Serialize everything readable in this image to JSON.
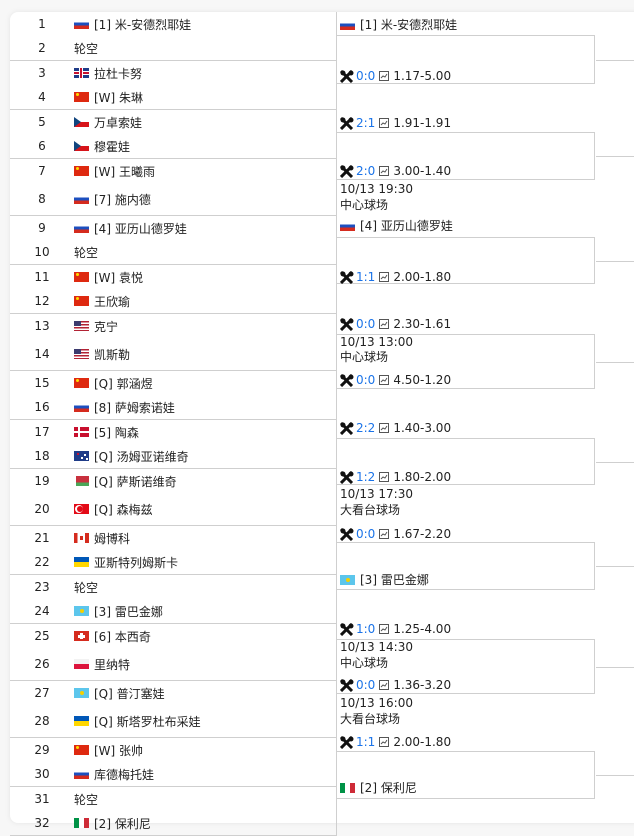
{
  "colors": {
    "score": "#1a73e8",
    "border": "#cfcfcf"
  },
  "players": [
    {
      "seed": "1",
      "flag": "ru",
      "name": "[1] 米-安德烈耶娃"
    },
    {
      "seed": "2",
      "flag": "",
      "name": "轮空"
    },
    {
      "seed": "3",
      "flag": "gb",
      "name": "拉杜卡努"
    },
    {
      "seed": "4",
      "flag": "cn",
      "name": "[W] 朱琳"
    },
    {
      "seed": "5",
      "flag": "cz",
      "name": "万卓索娃"
    },
    {
      "seed": "6",
      "flag": "cz",
      "name": "穆霍娃"
    },
    {
      "seed": "7",
      "flag": "cn",
      "name": "[W] 王曦雨"
    },
    {
      "seed": "8",
      "flag": "ru",
      "name": "[7] 施内德"
    },
    {
      "seed": "9",
      "flag": "ru",
      "name": "[4] 亚历山德罗娃"
    },
    {
      "seed": "10",
      "flag": "",
      "name": "轮空"
    },
    {
      "seed": "11",
      "flag": "cn",
      "name": "[W] 袁悦"
    },
    {
      "seed": "12",
      "flag": "cn",
      "name": "王欣瑜"
    },
    {
      "seed": "13",
      "flag": "us",
      "name": "克宁"
    },
    {
      "seed": "14",
      "flag": "us",
      "name": "凯斯勒"
    },
    {
      "seed": "15",
      "flag": "cn",
      "name": "[Q] 郭涵煜"
    },
    {
      "seed": "16",
      "flag": "ru",
      "name": "[8] 萨姆索诺娃"
    },
    {
      "seed": "17",
      "flag": "dk",
      "name": "[5] 陶森"
    },
    {
      "seed": "18",
      "flag": "au",
      "name": "[Q] 汤姆亚诺维奇"
    },
    {
      "seed": "19",
      "flag": "by",
      "name": "[Q] 萨斯诺维奇"
    },
    {
      "seed": "20",
      "flag": "tr",
      "name": "[Q] 森梅兹"
    },
    {
      "seed": "21",
      "flag": "ca",
      "name": "姆博科"
    },
    {
      "seed": "22",
      "flag": "ua",
      "name": "亚斯特列姆斯卡"
    },
    {
      "seed": "23",
      "flag": "",
      "name": "轮空"
    },
    {
      "seed": "24",
      "flag": "kz",
      "name": "[3] 雷巴金娜"
    },
    {
      "seed": "25",
      "flag": "ch",
      "name": "[6] 本西奇"
    },
    {
      "seed": "26",
      "flag": "pl",
      "name": "里纳特"
    },
    {
      "seed": "27",
      "flag": "kz",
      "name": "[Q] 普汀塞娃"
    },
    {
      "seed": "28",
      "flag": "ua",
      "name": "[Q] 斯塔罗杜布采娃"
    },
    {
      "seed": "29",
      "flag": "cn",
      "name": "[W] 张帅"
    },
    {
      "seed": "30",
      "flag": "ru",
      "name": "库德梅托娃"
    },
    {
      "seed": "31",
      "flag": "",
      "name": "轮空"
    },
    {
      "seed": "32",
      "flag": "it-flag",
      "name": "[2] 保利尼"
    }
  ],
  "bracket": {
    "winners": [
      {
        "flag": "ru",
        "name": "[1] 米-安德烈耶娃"
      },
      {
        "flag": "ru",
        "name": "[4] 亚历山德罗娃"
      },
      {
        "flag": "kz",
        "name": "[3] 雷巴金娜"
      },
      {
        "flag": "it-flag",
        "name": "[2] 保利尼"
      }
    ],
    "matches": [
      {
        "icon": "crossed-rackets-icon",
        "score": "0:0",
        "odds_icon": "chart-icon",
        "odds": "1.17-5.00"
      },
      {
        "icon": "crossed-rackets-icon",
        "score": "2:1",
        "odds_icon": "chart-icon",
        "odds": "1.91-1.91"
      },
      {
        "icon": "crossed-rackets-icon",
        "score": "2:0",
        "odds_icon": "chart-icon",
        "odds": "3.00-1.40"
      },
      {
        "icon": "crossed-rackets-icon",
        "score": "1:1",
        "odds_icon": "chart-icon",
        "odds": "2.00-1.80"
      },
      {
        "icon": "crossed-rackets-icon",
        "score": "0:0",
        "odds_icon": "chart-icon",
        "odds": "2.30-1.61"
      },
      {
        "icon": "crossed-rackets-icon",
        "score": "0:0",
        "odds_icon": "chart-icon",
        "odds": "4.50-1.20"
      },
      {
        "icon": "crossed-rackets-icon",
        "score": "2:2",
        "odds_icon": "chart-icon",
        "odds": "1.40-3.00"
      },
      {
        "icon": "crossed-rackets-icon",
        "score": "1:2",
        "odds_icon": "chart-icon",
        "odds": "1.80-2.00"
      },
      {
        "icon": "crossed-rackets-icon",
        "score": "0:0",
        "odds_icon": "chart-icon",
        "odds": "1.67-2.20"
      },
      {
        "icon": "crossed-rackets-icon",
        "score": "1:0",
        "odds_icon": "chart-icon",
        "odds": "1.25-4.00"
      },
      {
        "icon": "crossed-rackets-icon",
        "score": "0:0",
        "odds_icon": "chart-icon",
        "odds": "1.36-3.20"
      },
      {
        "icon": "crossed-rackets-icon",
        "score": "1:1",
        "odds_icon": "chart-icon",
        "odds": "2.00-1.80"
      }
    ],
    "schedules": [
      {
        "time": "10/13 19:30",
        "court": "中心球场"
      },
      {
        "time": "10/13 13:00",
        "court": "中心球场"
      },
      {
        "time": "10/13 17:30",
        "court": "大看台球场"
      },
      {
        "time": "10/13 14:30",
        "court": "中心球场"
      },
      {
        "time": "10/13 16:00",
        "court": "大看台球场"
      }
    ]
  }
}
